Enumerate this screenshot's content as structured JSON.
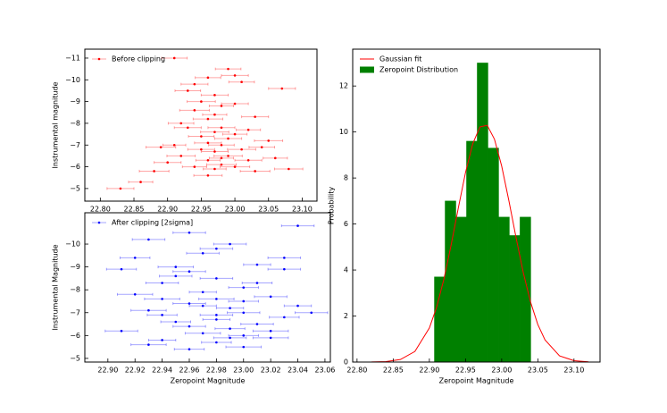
{
  "chart_data": [
    {
      "type": "scatter",
      "ylabel": "Instrumental magnitude",
      "xlim": [
        22.777,
        23.122
      ],
      "ylim": [
        -4.42,
        -11.41
      ],
      "xticks": [
        {
          "value": 22.8,
          "label": "22.80"
        },
        {
          "value": 22.85,
          "label": "22.85"
        },
        {
          "value": 22.9,
          "label": "22.90"
        },
        {
          "value": 22.95,
          "label": "22.95"
        },
        {
          "value": 23.0,
          "label": "23.00"
        },
        {
          "value": 23.05,
          "label": "23.05"
        },
        {
          "value": 23.1,
          "label": "23.10"
        }
      ],
      "yticks": [
        {
          "value": -11,
          "label": "−11"
        },
        {
          "value": -10,
          "label": "−10"
        },
        {
          "value": -9,
          "label": "−9"
        },
        {
          "value": -8,
          "label": "−8"
        },
        {
          "value": -7,
          "label": "−7"
        },
        {
          "value": -6,
          "label": "−6"
        },
        {
          "value": -5,
          "label": "−5"
        }
      ],
      "legend": "upper left",
      "series": [
        {
          "name": "Before clipping",
          "color": "#ff0000",
          "x": [
            22.83,
            22.86,
            22.88,
            22.9,
            22.91,
            22.92,
            22.93,
            22.93,
            22.94,
            22.94,
            22.95,
            22.95,
            22.95,
            22.96,
            22.96,
            22.96,
            22.96,
            22.97,
            22.97,
            22.97,
            22.97,
            22.97,
            22.98,
            22.98,
            22.98,
            22.98,
            22.99,
            22.99,
            22.99,
            23.0,
            23.0,
            23.0,
            23.01,
            23.01,
            23.02,
            23.02,
            23.03,
            23.03,
            23.04,
            23.05,
            23.06,
            23.07,
            22.89,
            22.92,
            22.94,
            22.96,
            22.98,
            23.0,
            22.91,
            23.08
          ],
          "values": [
            -5.0,
            -5.3,
            -5.8,
            -6.2,
            -7.0,
            -6.5,
            -9.5,
            -7.8,
            -6.0,
            -8.6,
            -6.8,
            -7.4,
            -9.0,
            -6.3,
            -7.1,
            -8.2,
            -10.1,
            -5.9,
            -6.7,
            -7.6,
            -8.4,
            -9.3,
            -6.1,
            -7.0,
            -7.8,
            -8.8,
            -6.5,
            -7.3,
            -10.5,
            -6.0,
            -7.5,
            -8.9,
            -6.8,
            -9.9,
            -6.3,
            -7.7,
            -5.8,
            -8.3,
            -6.9,
            -7.2,
            -6.4,
            -9.6,
            -6.9,
            -8.0,
            -9.8,
            -5.6,
            -6.4,
            -10.2,
            -11.0,
            -5.9
          ],
          "xerr": [
            0.02,
            0.018,
            0.022,
            0.02,
            0.017,
            0.021,
            0.019,
            0.02,
            0.018,
            0.022,
            0.02,
            0.019,
            0.021,
            0.018,
            0.02,
            0.022,
            0.019,
            0.017,
            0.02,
            0.021,
            0.018,
            0.02,
            0.022,
            0.019,
            0.02,
            0.018,
            0.021,
            0.02,
            0.019,
            0.022,
            0.018,
            0.02,
            0.021,
            0.019,
            0.02,
            0.018,
            0.022,
            0.02,
            0.019,
            0.021,
            0.018,
            0.02,
            0.022,
            0.019,
            0.02,
            0.021,
            0.018,
            0.02,
            0.019,
            0.021
          ]
        }
      ]
    },
    {
      "type": "scatter",
      "xlabel": "Zeropoint Magnitude",
      "ylabel": "Instrumental Magnitude",
      "xlim": [
        22.883,
        23.064
      ],
      "ylim": [
        -4.84,
        -11.37
      ],
      "xticks": [
        {
          "value": 22.9,
          "label": "22.90"
        },
        {
          "value": 22.92,
          "label": "22.92"
        },
        {
          "value": 22.94,
          "label": "22.94"
        },
        {
          "value": 22.96,
          "label": "22.96"
        },
        {
          "value": 22.98,
          "label": "22.98"
        },
        {
          "value": 23.0,
          "label": "23.00"
        },
        {
          "value": 23.02,
          "label": "23.02"
        },
        {
          "value": 23.04,
          "label": "23.04"
        },
        {
          "value": 23.06,
          "label": "23.06"
        }
      ],
      "yticks": [
        {
          "value": -10,
          "label": "−10"
        },
        {
          "value": -9,
          "label": "−9"
        },
        {
          "value": -8,
          "label": "−8"
        },
        {
          "value": -7,
          "label": "−7"
        },
        {
          "value": -6,
          "label": "−6"
        },
        {
          "value": -5,
          "label": "−5"
        }
      ],
      "legend": "upper left",
      "series": [
        {
          "name": "After clipping [2sigma]",
          "color": "#0000ff",
          "x": [
            22.91,
            22.92,
            22.93,
            22.93,
            22.94,
            22.94,
            22.95,
            22.95,
            22.96,
            22.96,
            22.96,
            22.97,
            22.97,
            22.97,
            22.98,
            22.98,
            22.98,
            22.98,
            22.99,
            22.99,
            22.99,
            23.0,
            23.0,
            23.0,
            23.01,
            23.01,
            23.02,
            23.02,
            23.03,
            23.03,
            23.04,
            23.04,
            22.92,
            22.94,
            22.96,
            22.98,
            23.0,
            23.02,
            22.95,
            22.97,
            22.99,
            23.01,
            22.93,
            23.05,
            22.91,
            22.96,
            22.98,
            23.03,
            22.94,
            23.0
          ],
          "values": [
            -6.2,
            -9.4,
            -7.1,
            -10.2,
            -5.8,
            -8.3,
            -6.6,
            -9.0,
            -7.4,
            -5.4,
            -8.8,
            -6.1,
            -7.9,
            -9.6,
            -5.7,
            -6.9,
            -7.6,
            -8.5,
            -6.3,
            -7.2,
            -10.0,
            -5.5,
            -7.0,
            -8.1,
            -6.5,
            -9.1,
            -5.9,
            -7.7,
            -6.8,
            -8.9,
            -7.3,
            -10.8,
            -7.8,
            -6.9,
            -6.4,
            -9.8,
            -7.5,
            -6.2,
            -8.6,
            -7.3,
            -5.9,
            -8.3,
            -5.6,
            -7.0,
            -8.9,
            -10.5,
            -6.7,
            -9.4,
            -7.6,
            -6.0
          ],
          "xerr": [
            0.012,
            0.011,
            0.013,
            0.012,
            0.01,
            0.012,
            0.011,
            0.013,
            0.012,
            0.011,
            0.012,
            0.013,
            0.01,
            0.012,
            0.011,
            0.012,
            0.013,
            0.012,
            0.011,
            0.01,
            0.012,
            0.013,
            0.012,
            0.011,
            0.012,
            0.01,
            0.013,
            0.012,
            0.011,
            0.012,
            0.01,
            0.012,
            0.013,
            0.011,
            0.012,
            0.012,
            0.011,
            0.013,
            0.012,
            0.01,
            0.012,
            0.011,
            0.013,
            0.012,
            0.011,
            0.012,
            0.01,
            0.012,
            0.013,
            0.011
          ]
        }
      ]
    },
    {
      "type": "histogram",
      "xlabel": "Zeropoint Magnitude",
      "ylabel": "Probability",
      "xlim": [
        22.794,
        23.136
      ],
      "ylim": [
        0,
        13.6
      ],
      "xticks": [
        {
          "value": 22.8,
          "label": "22.80"
        },
        {
          "value": 22.85,
          "label": "22.85"
        },
        {
          "value": 22.9,
          "label": "22.90"
        },
        {
          "value": 22.95,
          "label": "22.95"
        },
        {
          "value": 23.0,
          "label": "23.00"
        },
        {
          "value": 23.05,
          "label": "23.05"
        },
        {
          "value": 23.1,
          "label": "23.10"
        }
      ],
      "yticks": [
        0,
        2,
        4,
        6,
        8,
        10,
        12
      ],
      "legend": "upper left",
      "bins": [
        22.907,
        22.9218,
        22.9366,
        22.9514,
        22.9662,
        22.981,
        22.9958,
        23.0106,
        23.0254,
        23.0402
      ],
      "values": [
        3.7,
        7.0,
        6.3,
        9.6,
        13.0,
        9.3,
        6.3,
        5.5,
        6.3
      ],
      "name": "Zeropoint Distribution",
      "color": "#008000",
      "series": [
        {
          "name": "Gaussian fit",
          "color": "#ff0000",
          "x": [
            22.8,
            22.82,
            22.84,
            22.86,
            22.88,
            22.9,
            22.91,
            22.92,
            22.93,
            22.94,
            22.95,
            22.96,
            22.97,
            22.98,
            22.99,
            23.0,
            23.01,
            23.02,
            23.03,
            23.04,
            23.05,
            23.06,
            23.08,
            23.1,
            23.12
          ],
          "values": [
            0.0,
            0.003,
            0.02,
            0.11,
            0.46,
            1.48,
            2.38,
            3.59,
            5.07,
            6.69,
            8.24,
            9.49,
            10.22,
            10.29,
            9.69,
            8.52,
            7.01,
            5.39,
            3.87,
            2.6,
            1.63,
            0.96,
            0.27,
            0.06,
            0.01
          ]
        }
      ]
    }
  ]
}
